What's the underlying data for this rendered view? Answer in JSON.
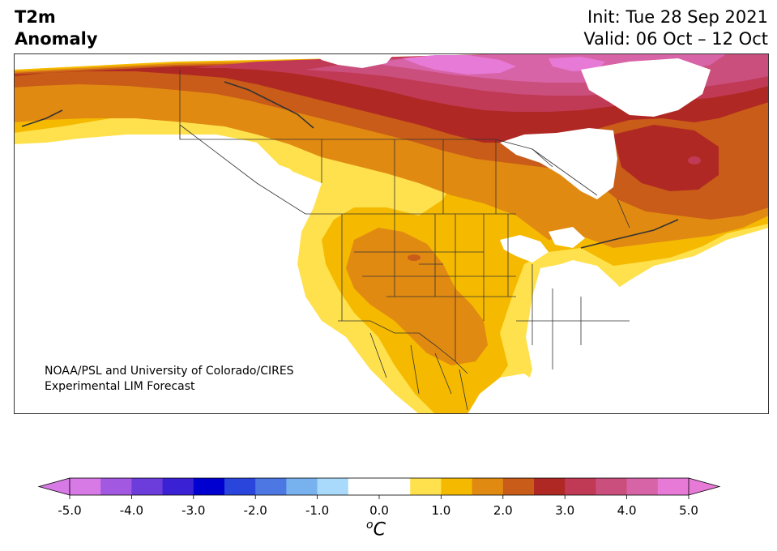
{
  "title": {
    "left_line1": "T2m",
    "left_line2": "Anomaly",
    "right_line1": "Init: Tue 28 Sep 2021",
    "right_line2": "Valid: 06 Oct – 12 Oct"
  },
  "credit": {
    "line1": "NOAA/PSL and University of Colorado/CIRES",
    "line2": "Experimental LIM Forecast"
  },
  "colorbar": {
    "unit_sup": "o",
    "unit_main": "C",
    "ticks": [
      "-5.0",
      "-4.0",
      "-3.0",
      "-2.0",
      "-1.0",
      "0.0",
      "1.0",
      "2.0",
      "3.0",
      "4.0",
      "5.0"
    ],
    "tick_values": [
      -5,
      -4,
      -3,
      -2,
      -1,
      0,
      1,
      2,
      3,
      4,
      5
    ],
    "range": [
      -5,
      5
    ],
    "step": 0.5,
    "under_color": "#d87ae6",
    "over_color": "#e77ad6",
    "colors": [
      "#d87ae6",
      "#a358e1",
      "#6c3ddb",
      "#3a22d4",
      "#0000d0",
      "#2a45db",
      "#4d78e4",
      "#78b2ee",
      "#a9dafb",
      "#ffffff",
      "#ffffff",
      "#ffe14d",
      "#f5ba00",
      "#e18a12",
      "#c85c18",
      "#b02823",
      "#c03a55",
      "#cb4f7d",
      "#d864a8",
      "#e77ad6"
    ]
  },
  "map": {
    "land_base": "#ffffff",
    "border_color": "#333333",
    "anomaly_levels": [
      {
        "name": "0.5-1.0",
        "color": "#ffe14d"
      },
      {
        "name": "1.0-1.5",
        "color": "#f5ba00"
      },
      {
        "name": "1.5-2.0",
        "color": "#e18a12"
      },
      {
        "name": "2.0-2.5",
        "color": "#c85c18"
      },
      {
        "name": "2.5-3.0",
        "color": "#b02823"
      },
      {
        "name": "3.0-3.5",
        "color": "#c03a55"
      },
      {
        "name": "3.5-4.0",
        "color": "#cb4f7d"
      },
      {
        "name": "4.0-4.5",
        "color": "#d864a8"
      },
      {
        "name": "4.5-5.0",
        "color": "#e77ad6"
      }
    ]
  }
}
